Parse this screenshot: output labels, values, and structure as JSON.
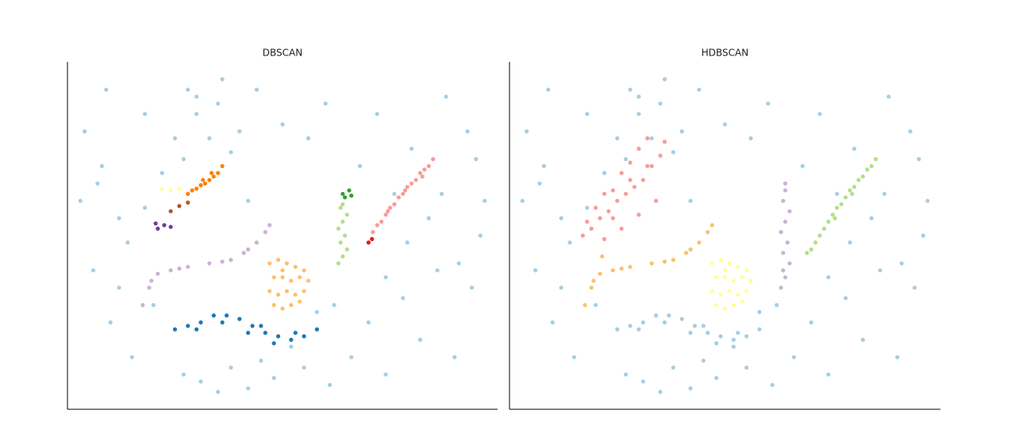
{
  "chart_data": [
    {
      "type": "scatter",
      "title": "DBSCAN",
      "xlim": [
        0,
        100
      ],
      "ylim": [
        0,
        100
      ],
      "series": [
        {
          "color": "#a6cee3",
          "x": [
            4,
            8,
            12,
            6,
            10,
            15,
            18,
            3,
            9,
            14,
            20,
            27,
            31,
            35,
            38,
            42,
            45,
            48,
            52,
            55,
            58,
            61,
            66,
            70,
            74,
            78,
            82,
            86,
            90,
            94,
            97,
            93,
            88,
            80,
            76,
            72,
            60,
            56,
            50,
            44,
            36,
            30,
            25,
            12,
            7,
            96,
            91,
            84,
            68,
            62,
            30,
            33,
            27,
            35,
            40,
            22,
            28,
            38,
            18,
            42,
            74,
            87,
            95,
            79
          ],
          "y": [
            80,
            70,
            55,
            40,
            25,
            15,
            85,
            60,
            92,
            48,
            30,
            10,
            8,
            5,
            12,
            6,
            14,
            9,
            18,
            12,
            28,
            7,
            15,
            25,
            10,
            32,
            20,
            40,
            15,
            35,
            60,
            80,
            90,
            75,
            62,
            85,
            88,
            78,
            82,
            92,
            95,
            90,
            78,
            35,
            65,
            50,
            42,
            55,
            70,
            30,
            85,
            78,
            72,
            88,
            80,
            68,
            92,
            74,
            58,
            60,
            38,
            62,
            72,
            48
          ]
        },
        {
          "color": "#1f78b4",
          "x": [
            25,
            28,
            31,
            34,
            37,
            40,
            43,
            46,
            49,
            52,
            55,
            58,
            30,
            36,
            42,
            48,
            53,
            45
          ],
          "y": [
            23,
            24,
            25,
            27,
            27,
            26,
            24,
            22,
            21,
            20,
            21,
            23,
            23,
            25,
            22,
            19,
            22,
            24
          ]
        },
        {
          "color": "#fdbf6f",
          "x": [
            47,
            49,
            51,
            53,
            55,
            48,
            50,
            52,
            54,
            56,
            47,
            49,
            51,
            53,
            55,
            48,
            50,
            52,
            54,
            50
          ],
          "y": [
            42,
            43,
            42,
            41,
            40,
            38,
            38,
            37,
            38,
            37,
            34,
            33,
            34,
            33,
            34,
            30,
            29,
            30,
            31,
            40
          ]
        },
        {
          "color": "#cab2d6",
          "x": [
            17.5,
            19,
            21,
            24,
            28,
            33,
            38,
            41,
            44,
            46,
            47,
            19.5,
            26,
            36,
            42
          ],
          "y": [
            30,
            35,
            39,
            40,
            41,
            42,
            43,
            45,
            48,
            51,
            53,
            37,
            40.5,
            42.5,
            46
          ]
        },
        {
          "color": "#ff7f00",
          "x": [
            28,
            29,
            30,
            31,
            32,
            33,
            34,
            35,
            36,
            31.5,
            33.5
          ],
          "y": [
            62,
            63,
            63.5,
            64.5,
            65,
            66,
            67,
            68,
            70,
            66,
            68
          ]
        },
        {
          "color": "#ffff99",
          "x": [
            22,
            24,
            26
          ],
          "y": [
            63.5,
            63,
            63.5
          ]
        },
        {
          "color": "#b15928",
          "x": [
            24,
            26,
            28
          ],
          "y": [
            57,
            58.5,
            59.5
          ]
        },
        {
          "color": "#6a3d9a",
          "x": [
            21,
            22.5,
            24,
            20.5
          ],
          "y": [
            52,
            53,
            52.5,
            53.5
          ]
        },
        {
          "color": "#33a02c",
          "x": [
            64,
            65.5,
            64.5,
            66
          ],
          "y": [
            62,
            63,
            61,
            61.5
          ]
        },
        {
          "color": "#b2df8a",
          "x": [
            63,
            64,
            65,
            63.5,
            64.5,
            63,
            64,
            65,
            63.5,
            64
          ],
          "y": [
            42,
            44,
            46,
            48,
            50,
            52,
            54,
            56,
            58,
            59
          ]
        },
        {
          "color": "#fb9a99",
          "x": [
            71,
            72,
            73,
            74,
            75,
            76,
            77,
            78,
            79,
            80,
            81,
            82,
            83,
            84,
            85,
            74.5,
            78.5,
            82.5
          ],
          "y": [
            51,
            53,
            54,
            56,
            58,
            59,
            61,
            62,
            64,
            65,
            66,
            68,
            69,
            70,
            72,
            57,
            63,
            67
          ]
        },
        {
          "color": "#e31a1c",
          "x": [
            70,
            70.8
          ],
          "y": [
            48,
            49
          ]
        }
      ]
    },
    {
      "type": "scatter",
      "title": "HDBSCAN",
      "xlim": [
        0,
        100
      ],
      "ylim": [
        0,
        100
      ],
      "series": [
        {
          "color": "#a6cee3",
          "x": [
            4,
            8,
            12,
            6,
            10,
            15,
            18,
            3,
            9,
            14,
            20,
            27,
            31,
            35,
            38,
            42,
            45,
            48,
            52,
            55,
            58,
            61,
            66,
            70,
            74,
            78,
            82,
            86,
            90,
            94,
            97,
            93,
            88,
            80,
            76,
            72,
            60,
            56,
            50,
            44,
            36,
            30,
            25,
            12,
            7,
            96,
            91,
            84,
            68,
            62,
            30,
            33,
            27,
            35,
            40,
            22,
            28,
            38,
            18,
            42,
            74,
            87,
            95,
            79
          ],
          "y": [
            80,
            70,
            55,
            40,
            25,
            15,
            85,
            60,
            92,
            48,
            30,
            10,
            8,
            5,
            12,
            6,
            14,
            9,
            18,
            12,
            28,
            7,
            15,
            25,
            10,
            32,
            20,
            40,
            15,
            35,
            60,
            80,
            90,
            75,
            62,
            85,
            88,
            78,
            82,
            92,
            95,
            90,
            78,
            35,
            65,
            50,
            42,
            55,
            70,
            30,
            85,
            78,
            72,
            88,
            80,
            68,
            92,
            74,
            58,
            60,
            38,
            62,
            72,
            48
          ]
        },
        {
          "color": "#a6cee3",
          "x": [
            25,
            28,
            31,
            34,
            37,
            40,
            43,
            46,
            49,
            52,
            55,
            58,
            30,
            36,
            42,
            48,
            53,
            45
          ],
          "y": [
            23,
            24,
            25,
            27,
            27,
            26,
            24,
            22,
            21,
            20,
            21,
            23,
            23,
            25,
            22,
            19,
            22,
            24
          ]
        },
        {
          "color": "#fb9a99",
          "x": [
            17,
            19,
            21,
            23,
            25,
            27,
            29,
            31,
            33,
            35,
            20,
            24,
            28,
            32,
            36,
            22,
            26,
            30,
            34,
            28,
            30,
            32,
            18,
            22,
            26,
            24
          ],
          "y": [
            50,
            52,
            55,
            57,
            60,
            62,
            64,
            66,
            70,
            73,
            58,
            63,
            66,
            70,
            77,
            49,
            52,
            56,
            60,
            71,
            75,
            78,
            54,
            62,
            68,
            55
          ]
        },
        {
          "color": "#fdbf6f",
          "x": [
            17.5,
            19,
            21,
            24,
            28,
            33,
            38,
            41,
            44,
            46,
            47,
            19.5,
            26,
            36,
            42,
            21.5
          ],
          "y": [
            30,
            35,
            39,
            40,
            41,
            42,
            43,
            45,
            48,
            51,
            53,
            37,
            40.5,
            42.5,
            46,
            44
          ]
        },
        {
          "color": "#ffff99",
          "x": [
            47,
            49,
            51,
            53,
            55,
            48,
            50,
            52,
            54,
            56,
            47,
            49,
            51,
            53,
            55,
            48,
            50,
            52,
            54,
            50
          ],
          "y": [
            42,
            43,
            42,
            41,
            40,
            38,
            38,
            37,
            38,
            37,
            34,
            33,
            34,
            33,
            34,
            30,
            29,
            30,
            31,
            40
          ]
        },
        {
          "color": "#cab2d6",
          "x": [
            63,
            64,
            65,
            63.5,
            64.5,
            63,
            64,
            65,
            63.5,
            64,
            64,
            63.5
          ],
          "y": [
            35,
            38,
            42,
            45,
            48,
            51,
            54,
            57,
            60,
            63,
            65,
            40
          ]
        },
        {
          "color": "#b2df8a",
          "x": [
            69,
            71,
            72,
            73,
            74,
            75,
            76,
            77,
            78,
            79,
            80,
            81,
            82,
            83,
            84,
            85,
            70,
            75.5,
            79.5
          ],
          "y": [
            45,
            48,
            50,
            52,
            54,
            56,
            58,
            59,
            61,
            63,
            64,
            66,
            67,
            69,
            70,
            72,
            46,
            55,
            62
          ]
        }
      ]
    }
  ]
}
